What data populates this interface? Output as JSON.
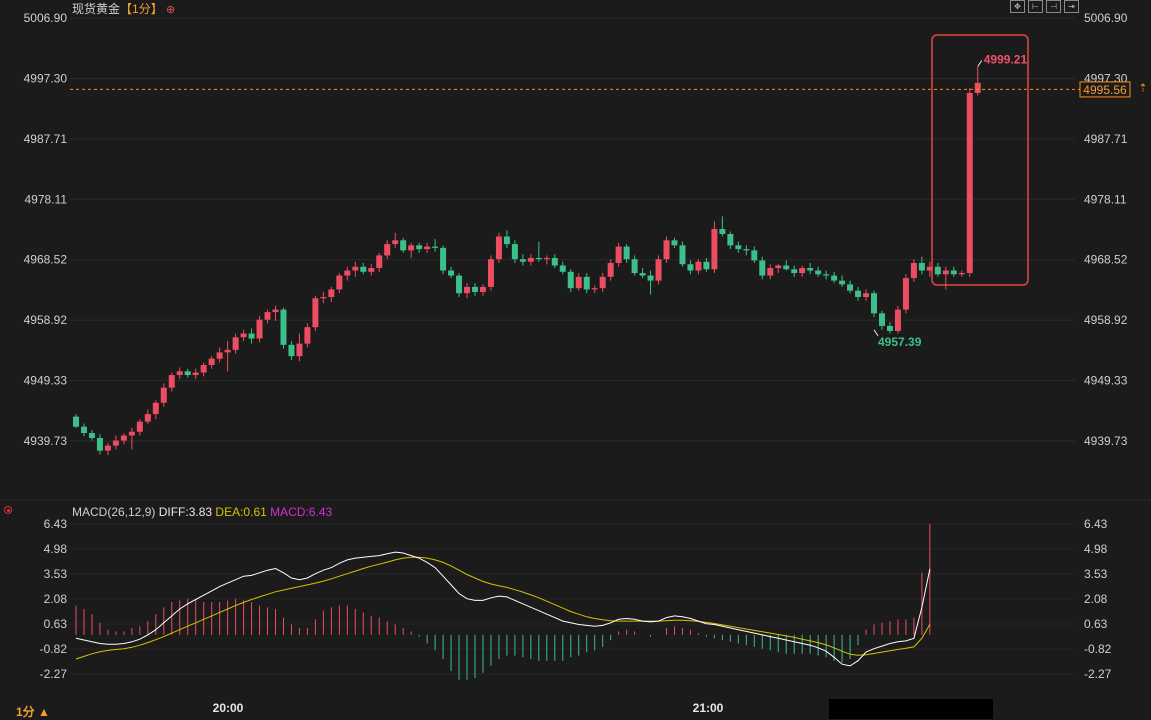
{
  "header": {
    "symbol": "现货黄金",
    "period_tag": "【1分】",
    "settings_icon": "circle-plus-icon"
  },
  "toolbar": {
    "buttons": [
      "fit-icon",
      "zoom-in-icon",
      "zoom-out-icon",
      "scroll-end-icon"
    ]
  },
  "price_axis": {
    "ticks": [
      "5006.90",
      "4997.30",
      "4987.71",
      "4978.11",
      "4968.52",
      "4958.92",
      "4949.33",
      "4939.73"
    ]
  },
  "last_price": "4995.56",
  "annotations": {
    "high_label": "4999.21",
    "low_label": "4957.39",
    "colors": {
      "high": "#f0506e",
      "low": "#3cbf8a",
      "box": "#e8463c",
      "last_line": "#ff8c1a"
    }
  },
  "macd": {
    "title": "MACD(26,12,9)",
    "diff_label": "DIFF:3.83",
    "dea_label": "DEA:0.61",
    "macd_label": "MACD:6.43",
    "ticks": [
      "6.43",
      "4.98",
      "3.53",
      "2.08",
      "0.63",
      "-0.82",
      "-2.27"
    ],
    "colors": {
      "diff": "#ffffff",
      "dea": "#d7c200",
      "macd_label": "#d02fd0"
    }
  },
  "time_axis": {
    "labels": [
      "20:00",
      "21:00"
    ]
  },
  "period_button": "1分 ▲",
  "chart_data": [
    {
      "type": "candlestick",
      "title": "现货黄金【1分】",
      "ylim": [
        4937,
        5008
      ],
      "colors": {
        "up": "#eb4d62",
        "down": "#3cbf8a"
      },
      "candles": [
        [
          4943.6,
          4944.0,
          4941.8,
          4942.0
        ],
        [
          4942.0,
          4942.5,
          4940.5,
          4941.0
        ],
        [
          4941.0,
          4941.5,
          4939.8,
          4940.2
        ],
        [
          4940.2,
          4940.8,
          4937.6,
          4938.2
        ],
        [
          4938.2,
          4939.4,
          4937.5,
          4939.0
        ],
        [
          4939.0,
          4940.6,
          4938.4,
          4939.8
        ],
        [
          4939.8,
          4941.0,
          4939.2,
          4940.6
        ],
        [
          4940.6,
          4941.8,
          4938.4,
          4941.2
        ],
        [
          4941.2,
          4943.2,
          4940.6,
          4942.8
        ],
        [
          4942.8,
          4944.7,
          4942.4,
          4944.0
        ],
        [
          4944.0,
          4946.2,
          4943.2,
          4945.8
        ],
        [
          4945.8,
          4948.9,
          4945.2,
          4948.2
        ],
        [
          4948.2,
          4950.6,
          4947.6,
          4950.2
        ],
        [
          4950.2,
          4951.4,
          4949.6,
          4950.8
        ],
        [
          4950.8,
          4951.2,
          4949.8,
          4950.2
        ],
        [
          4950.2,
          4951.2,
          4949.6,
          4950.6
        ],
        [
          4950.6,
          4952.2,
          4950.0,
          4951.8
        ],
        [
          4951.8,
          4953.2,
          4951.2,
          4952.8
        ],
        [
          4952.8,
          4954.6,
          4952.2,
          4953.8
        ],
        [
          4953.8,
          4955.6,
          4950.8,
          4954.2
        ],
        [
          4954.2,
          4956.8,
          4953.6,
          4956.2
        ],
        [
          4956.2,
          4957.4,
          4955.6,
          4956.8
        ],
        [
          4956.8,
          4957.6,
          4955.2,
          4956.0
        ],
        [
          4956.0,
          4959.6,
          4955.4,
          4959.0
        ],
        [
          4959.0,
          4960.6,
          4958.4,
          4960.2
        ],
        [
          4960.2,
          4961.2,
          4958.8,
          4960.6
        ],
        [
          4960.6,
          4960.9,
          4954.4,
          4955.0
        ],
        [
          4955.0,
          4955.6,
          4952.6,
          4953.2
        ],
        [
          4953.2,
          4956.8,
          4952.4,
          4955.2
        ],
        [
          4955.2,
          4958.4,
          4954.6,
          4957.8
        ],
        [
          4957.8,
          4962.8,
          4957.2,
          4962.4
        ],
        [
          4962.4,
          4963.4,
          4961.6,
          4962.6
        ],
        [
          4962.6,
          4964.2,
          4961.8,
          4963.8
        ],
        [
          4963.8,
          4966.4,
          4963.2,
          4966.0
        ],
        [
          4966.0,
          4967.4,
          4965.2,
          4966.8
        ],
        [
          4966.8,
          4968.2,
          4965.8,
          4967.4
        ],
        [
          4967.4,
          4968.0,
          4966.2,
          4966.6
        ],
        [
          4966.6,
          4967.8,
          4966.0,
          4967.2
        ],
        [
          4967.2,
          4969.6,
          4966.6,
          4969.2
        ],
        [
          4969.2,
          4971.6,
          4968.6,
          4971.0
        ],
        [
          4971.0,
          4972.8,
          4970.4,
          4971.6
        ],
        [
          4971.6,
          4972.0,
          4969.6,
          4970.0
        ],
        [
          4970.0,
          4971.2,
          4968.8,
          4970.8
        ],
        [
          4970.8,
          4971.2,
          4969.6,
          4970.2
        ],
        [
          4970.2,
          4971.2,
          4969.6,
          4970.6
        ],
        [
          4970.6,
          4971.8,
          4969.8,
          4970.4
        ],
        [
          4970.4,
          4970.8,
          4966.2,
          4966.8
        ],
        [
          4966.8,
          4967.4,
          4965.6,
          4966.0
        ],
        [
          4966.0,
          4966.4,
          4962.6,
          4963.2
        ],
        [
          4963.2,
          4964.8,
          4962.4,
          4964.2
        ],
        [
          4964.2,
          4964.8,
          4962.8,
          4963.4
        ],
        [
          4963.4,
          4964.6,
          4962.8,
          4964.2
        ],
        [
          4964.2,
          4969.2,
          4963.6,
          4968.6
        ],
        [
          4968.6,
          4972.8,
          4968.0,
          4972.2
        ],
        [
          4972.2,
          4973.2,
          4970.4,
          4971.0
        ],
        [
          4971.0,
          4971.6,
          4968.0,
          4968.6
        ],
        [
          4968.6,
          4969.4,
          4967.6,
          4968.2
        ],
        [
          4968.2,
          4969.4,
          4967.6,
          4968.8
        ],
        [
          4968.8,
          4971.4,
          4968.2,
          4968.6
        ],
        [
          4968.6,
          4969.2,
          4967.8,
          4968.8
        ],
        [
          4968.8,
          4969.4,
          4967.2,
          4967.6
        ],
        [
          4967.6,
          4968.2,
          4966.2,
          4966.6
        ],
        [
          4966.6,
          4967.0,
          4963.4,
          4964.0
        ],
        [
          4964.0,
          4966.4,
          4963.6,
          4965.8
        ],
        [
          4965.8,
          4966.4,
          4963.2,
          4963.8
        ],
        [
          4963.8,
          4964.4,
          4963.2,
          4964.0
        ],
        [
          4964.0,
          4966.4,
          4963.4,
          4965.8
        ],
        [
          4965.8,
          4968.6,
          4965.2,
          4968.0
        ],
        [
          4968.0,
          4971.2,
          4967.4,
          4970.6
        ],
        [
          4970.6,
          4971.0,
          4968.0,
          4968.6
        ],
        [
          4968.6,
          4969.2,
          4966.0,
          4966.4
        ],
        [
          4966.4,
          4967.2,
          4965.6,
          4966.0
        ],
        [
          4966.0,
          4966.8,
          4963.0,
          4965.2
        ],
        [
          4965.2,
          4969.2,
          4964.6,
          4968.6
        ],
        [
          4968.6,
          4972.2,
          4968.0,
          4971.6
        ],
        [
          4971.6,
          4972.0,
          4970.4,
          4970.8
        ],
        [
          4970.8,
          4971.4,
          4967.4,
          4967.8
        ],
        [
          4967.8,
          4968.4,
          4966.2,
          4966.8
        ],
        [
          4966.8,
          4968.6,
          4966.2,
          4968.2
        ],
        [
          4968.2,
          4968.8,
          4966.6,
          4967.0
        ],
        [
          4967.0,
          4974.6,
          4966.4,
          4973.4
        ],
        [
          4973.4,
          4975.4,
          4972.2,
          4972.6
        ],
        [
          4972.6,
          4973.0,
          4970.2,
          4970.8
        ],
        [
          4970.8,
          4971.4,
          4969.6,
          4970.2
        ],
        [
          4970.2,
          4970.8,
          4969.2,
          4970.0
        ],
        [
          4970.0,
          4970.6,
          4968.0,
          4968.4
        ],
        [
          4968.4,
          4969.0,
          4965.4,
          4966.0
        ],
        [
          4966.0,
          4967.8,
          4965.4,
          4967.2
        ],
        [
          4967.2,
          4967.8,
          4966.4,
          4967.6
        ],
        [
          4967.6,
          4968.4,
          4966.8,
          4967.0
        ],
        [
          4967.0,
          4967.6,
          4965.8,
          4966.4
        ],
        [
          4966.4,
          4967.6,
          4965.8,
          4967.2
        ],
        [
          4967.2,
          4968.0,
          4966.2,
          4966.8
        ],
        [
          4966.8,
          4967.4,
          4965.8,
          4966.2
        ],
        [
          4966.2,
          4966.8,
          4965.4,
          4966.0
        ],
        [
          4966.0,
          4966.6,
          4964.8,
          4965.2
        ],
        [
          4965.2,
          4966.0,
          4964.2,
          4964.6
        ],
        [
          4964.6,
          4965.2,
          4963.2,
          4963.6
        ],
        [
          4963.6,
          4964.2,
          4962.0,
          4962.6
        ],
        [
          4962.6,
          4963.8,
          4962.0,
          4963.2
        ],
        [
          4963.2,
          4963.6,
          4959.4,
          4960.0
        ],
        [
          4960.0,
          4960.4,
          4957.4,
          4958.0
        ],
        [
          4958.0,
          4958.6,
          4956.8,
          4957.2
        ],
        [
          4957.2,
          4961.2,
          4956.8,
          4960.6
        ],
        [
          4960.6,
          4966.2,
          4960.0,
          4965.6
        ],
        [
          4965.6,
          4968.6,
          4965.0,
          4968.0
        ],
        [
          4968.0,
          4969.0,
          4966.2,
          4966.8
        ],
        [
          4966.8,
          4968.2,
          4965.8,
          4967.4
        ],
        [
          4967.4,
          4968.0,
          4965.8,
          4966.2
        ],
        [
          4966.2,
          4967.4,
          4963.8,
          4966.8
        ],
        [
          4966.8,
          4967.4,
          4965.8,
          4966.2
        ],
        [
          4966.2,
          4966.8,
          4965.8,
          4966.4
        ],
        [
          4966.4,
          4995.8,
          4965.8,
          4995.0
        ],
        [
          4995.0,
          4999.2,
          4994.6,
          4996.6
        ]
      ],
      "high_marker": 4999.21,
      "low_marker": 4957.39,
      "last_price": 4995.56
    },
    {
      "type": "line",
      "title": "MACD(26,12,9)",
      "ylim": [
        -2.6,
        6.6
      ],
      "series": [
        {
          "name": "DIFF",
          "values": [
            -0.2,
            -0.3,
            -0.4,
            -0.5,
            -0.55,
            -0.55,
            -0.5,
            -0.4,
            -0.25,
            0.0,
            0.3,
            0.7,
            1.1,
            1.5,
            1.8,
            2.05,
            2.3,
            2.55,
            2.8,
            3.0,
            3.2,
            3.4,
            3.45,
            3.6,
            3.75,
            3.85,
            3.6,
            3.3,
            3.2,
            3.3,
            3.55,
            3.75,
            3.9,
            4.15,
            4.35,
            4.45,
            4.5,
            4.55,
            4.6,
            4.7,
            4.8,
            4.75,
            4.6,
            4.45,
            4.2,
            3.9,
            3.4,
            2.9,
            2.4,
            2.1,
            2.0,
            2.0,
            2.15,
            2.25,
            2.2,
            2.0,
            1.8,
            1.6,
            1.4,
            1.2,
            1.0,
            0.8,
            0.7,
            0.6,
            0.55,
            0.5,
            0.55,
            0.7,
            0.9,
            0.95,
            0.9,
            0.8,
            0.75,
            0.8,
            1.0,
            1.1,
            1.05,
            0.95,
            0.8,
            0.65,
            0.6,
            0.5,
            0.4,
            0.3,
            0.2,
            0.1,
            0.0,
            -0.1,
            -0.2,
            -0.3,
            -0.4,
            -0.5,
            -0.6,
            -0.75,
            -0.95,
            -1.3,
            -1.7,
            -1.8,
            -1.5,
            -1.0,
            -0.8,
            -0.65,
            -0.5,
            -0.4,
            -0.35,
            -0.2,
            1.6,
            3.83
          ]
        },
        {
          "name": "DEA",
          "values": [
            -1.4,
            -1.25,
            -1.1,
            -0.98,
            -0.9,
            -0.85,
            -0.8,
            -0.72,
            -0.6,
            -0.45,
            -0.28,
            -0.1,
            0.1,
            0.3,
            0.5,
            0.7,
            0.9,
            1.1,
            1.3,
            1.5,
            1.7,
            1.88,
            2.05,
            2.2,
            2.35,
            2.5,
            2.6,
            2.7,
            2.8,
            2.9,
            3.0,
            3.12,
            3.25,
            3.4,
            3.55,
            3.7,
            3.85,
            3.98,
            4.1,
            4.22,
            4.35,
            4.45,
            4.5,
            4.5,
            4.45,
            4.35,
            4.2,
            4.0,
            3.75,
            3.5,
            3.3,
            3.1,
            2.95,
            2.85,
            2.75,
            2.62,
            2.48,
            2.32,
            2.15,
            1.95,
            1.75,
            1.55,
            1.35,
            1.2,
            1.05,
            0.95,
            0.88,
            0.82,
            0.8,
            0.8,
            0.8,
            0.8,
            0.8,
            0.8,
            0.82,
            0.85,
            0.85,
            0.82,
            0.78,
            0.72,
            0.66,
            0.58,
            0.5,
            0.42,
            0.34,
            0.26,
            0.18,
            0.1,
            0.02,
            -0.06,
            -0.15,
            -0.25,
            -0.35,
            -0.45,
            -0.58,
            -0.75,
            -0.95,
            -1.12,
            -1.18,
            -1.15,
            -1.08,
            -1.0,
            -0.92,
            -0.85,
            -0.78,
            -0.7,
            -0.2,
            0.61
          ]
        },
        {
          "name": "MACD",
          "values": [
            1.7,
            1.5,
            1.2,
            0.7,
            0.3,
            0.2,
            0.2,
            0.4,
            0.5,
            0.8,
            1.2,
            1.6,
            1.9,
            2.0,
            2.1,
            2.0,
            1.9,
            1.9,
            1.9,
            2.0,
            2.1,
            2.0,
            1.9,
            1.7,
            1.6,
            1.5,
            1.0,
            0.6,
            0.4,
            0.4,
            0.9,
            1.4,
            1.6,
            1.7,
            1.7,
            1.5,
            1.3,
            1.1,
            1.0,
            0.8,
            0.6,
            0.4,
            0.2,
            -0.1,
            -0.5,
            -0.9,
            -1.4,
            -2.1,
            -2.6,
            -2.6,
            -2.5,
            -2.2,
            -1.8,
            -1.4,
            -1.2,
            -1.2,
            -1.3,
            -1.4,
            -1.5,
            -1.5,
            -1.5,
            -1.5,
            -1.3,
            -1.2,
            -1.0,
            -0.9,
            -0.7,
            -0.3,
            0.2,
            0.3,
            0.2,
            0.0,
            -0.1,
            0.0,
            0.4,
            0.5,
            0.4,
            0.3,
            0.1,
            -0.1,
            -0.2,
            -0.3,
            -0.4,
            -0.5,
            -0.6,
            -0.7,
            -0.8,
            -0.9,
            -1.0,
            -1.1,
            -1.1,
            -1.1,
            -1.1,
            -1.2,
            -1.3,
            -1.5,
            -1.6,
            -1.4,
            -0.6,
            0.3,
            0.6,
            0.7,
            0.8,
            0.9,
            0.9,
            1.0,
            3.6,
            6.43
          ]
        }
      ]
    }
  ]
}
